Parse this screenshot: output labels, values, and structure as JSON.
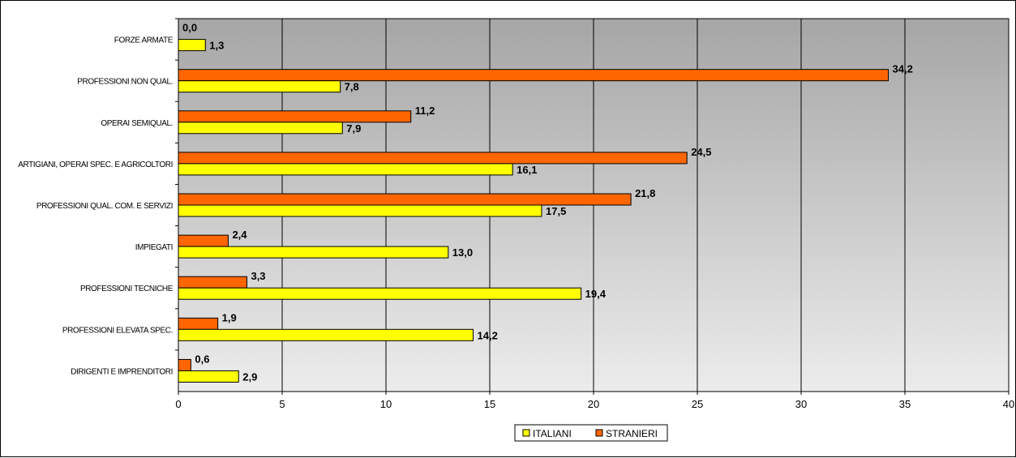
{
  "chart_data": {
    "type": "bar",
    "orientation": "horizontal",
    "categories": [
      "FORZE ARMATE",
      "PROFESSIONI NON QUAL.",
      "OPERAI SEMIQUAL.",
      "ARTIGIANI, OPERAI SPEC. E AGRICOLTORI",
      "PROFESSIONI QUAL. COM. E SERVIZI",
      "IMPIEGATI",
      "PROFESSIONI TECNICHE",
      "PROFESSIONI ELEVATA SPEC.",
      "DIRIGENTI E IMPRENDITORI"
    ],
    "series": [
      {
        "name": "STRANIERI",
        "color": "#ff6600",
        "values": [
          0.0,
          34.2,
          11.2,
          24.5,
          21.8,
          2.4,
          3.3,
          1.9,
          0.6
        ],
        "labels": [
          "0,0",
          "34,2",
          "11,2",
          "24,5",
          "21,8",
          "2,4",
          "3,3",
          "1,9",
          "0,6"
        ]
      },
      {
        "name": "ITALIANI",
        "color": "#ffff00",
        "values": [
          1.3,
          7.8,
          7.9,
          16.1,
          17.5,
          13.0,
          19.4,
          14.2,
          2.9
        ],
        "labels": [
          "1,3",
          "7,8",
          "7,9",
          "16,1",
          "17,5",
          "13,0",
          "19,4",
          "14,2",
          "2,9"
        ]
      }
    ],
    "xlim": [
      0,
      40
    ],
    "xticks": [
      0,
      5,
      10,
      15,
      20,
      25,
      30,
      35,
      40
    ],
    "grid": "vertical",
    "legend": {
      "position": "bottom",
      "entries": [
        {
          "label": "ITALIANI",
          "color": "#ffff00"
        },
        {
          "label": "STRANIERI",
          "color": "#ff6600"
        }
      ]
    },
    "title": "",
    "xlabel": "",
    "ylabel": ""
  }
}
